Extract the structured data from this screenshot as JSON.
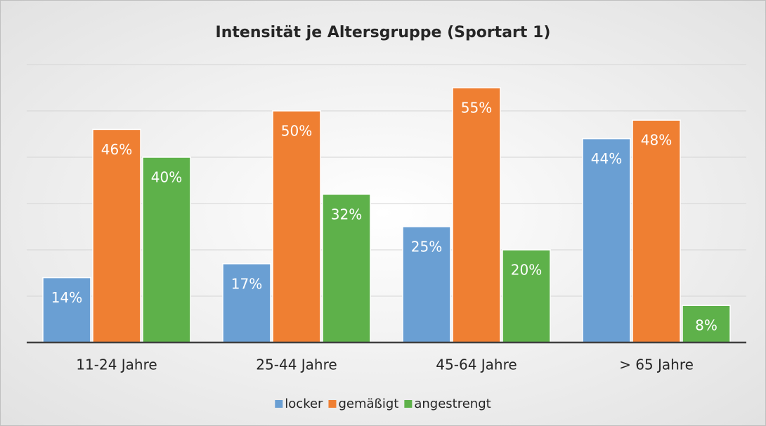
{
  "chart_data": {
    "type": "bar",
    "title": "Intensität je Altersgruppe (Sportart 1)",
    "categories": [
      "11-24 Jahre",
      "25-44 Jahre",
      "45-64 Jahre",
      "> 65 Jahre"
    ],
    "series": [
      {
        "name": "locker",
        "color": "#6a9fd3",
        "values": [
          14,
          17,
          25,
          44
        ],
        "value_labels": [
          "14%",
          "17%",
          "25%",
          "44%"
        ]
      },
      {
        "name": "gemäßigt",
        "color": "#ef7f32",
        "values": [
          46,
          50,
          55,
          48
        ],
        "value_labels": [
          "46%",
          "50%",
          "55%",
          "48%"
        ]
      },
      {
        "name": "angestrengt",
        "color": "#5eb14a",
        "values": [
          40,
          32,
          20,
          8
        ],
        "value_labels": [
          "40%",
          "32%",
          "20%",
          "8%"
        ]
      }
    ],
    "ylim": [
      0,
      60
    ],
    "yticks": [
      0,
      10,
      20,
      30,
      40,
      50,
      60
    ],
    "grid": true,
    "legend": "bottom"
  }
}
